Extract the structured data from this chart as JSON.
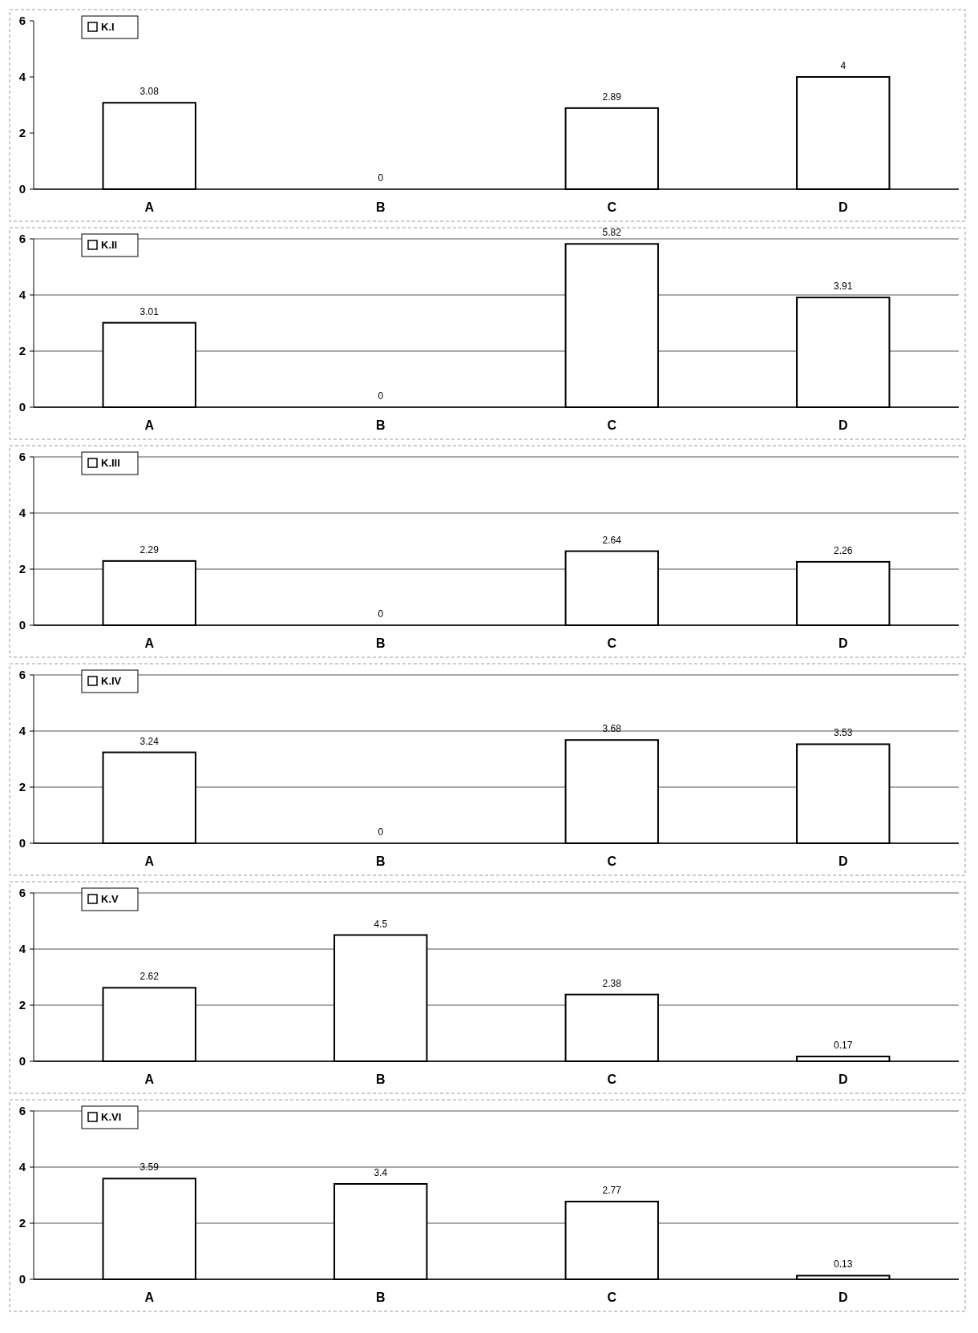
{
  "chart_data": [
    {
      "type": "bar",
      "categories": [
        "A",
        "B",
        "C",
        "D"
      ],
      "series": [
        {
          "name": "K.I",
          "color": "#ffffff",
          "values": [
            3.08,
            0,
            2.89,
            4
          ]
        }
      ],
      "ylim": [
        0,
        6
      ],
      "yticks": [
        0,
        2,
        4,
        6
      ],
      "grid": false,
      "legend": "top left",
      "data_labels": true
    },
    {
      "type": "bar",
      "categories": [
        "A",
        "B",
        "C",
        "D"
      ],
      "series": [
        {
          "name": "K.II",
          "color": "#ffffff",
          "values": [
            3.01,
            0,
            5.82,
            3.91
          ]
        }
      ],
      "ylim": [
        0,
        6
      ],
      "yticks": [
        0,
        2,
        4,
        6
      ],
      "grid": "y",
      "legend": "top left",
      "data_labels": true
    },
    {
      "type": "bar",
      "categories": [
        "A",
        "B",
        "C",
        "D"
      ],
      "series": [
        {
          "name": "K.III",
          "color": "#ffffff",
          "values": [
            2.29,
            0,
            2.64,
            2.26
          ]
        }
      ],
      "ylim": [
        0,
        6
      ],
      "yticks": [
        0,
        2,
        4,
        6
      ],
      "grid": "y",
      "legend": "top left",
      "data_labels": true
    },
    {
      "type": "bar",
      "categories": [
        "A",
        "B",
        "C",
        "D"
      ],
      "series": [
        {
          "name": "K.IV",
          "color": "#ffffff",
          "values": [
            3.24,
            0,
            3.68,
            3.53
          ]
        }
      ],
      "ylim": [
        0,
        6
      ],
      "yticks": [
        0,
        2,
        4,
        6
      ],
      "grid": "y",
      "legend": "top left",
      "data_labels": true
    },
    {
      "type": "bar",
      "categories": [
        "A",
        "B",
        "C",
        "D"
      ],
      "series": [
        {
          "name": "K.V",
          "color": "#ffffff",
          "values": [
            2.62,
            4.5,
            2.38,
            0.17
          ]
        }
      ],
      "ylim": [
        0,
        6
      ],
      "yticks": [
        0,
        2,
        4,
        6
      ],
      "grid": "y",
      "legend": "top left",
      "data_labels": true
    },
    {
      "type": "bar",
      "categories": [
        "A",
        "B",
        "C",
        "D"
      ],
      "series": [
        {
          "name": "K.VI",
          "color": "#ffffff",
          "values": [
            3.59,
            3.4,
            2.77,
            0.13
          ]
        }
      ],
      "ylim": [
        0,
        6
      ],
      "yticks": [
        0,
        2,
        4,
        6
      ],
      "grid": "y",
      "legend": "top left",
      "data_labels": true
    }
  ]
}
